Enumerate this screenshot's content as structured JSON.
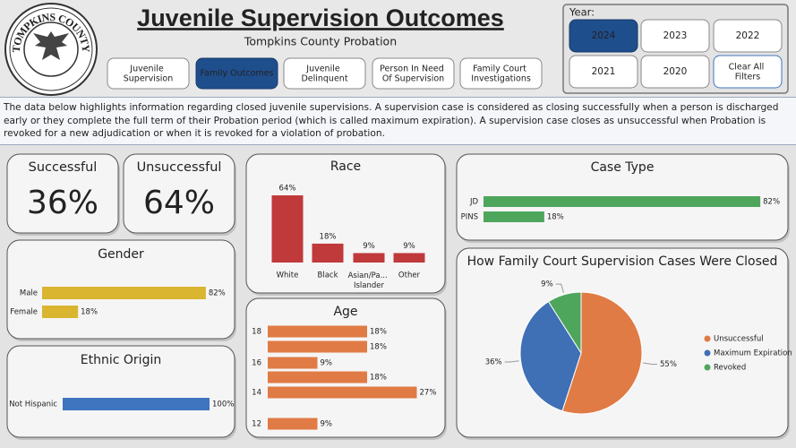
{
  "header": {
    "logo_text": "TOMPKINS COUNTY",
    "title": "Juvenile Supervision Outcomes",
    "subtitle": "Tompkins County Probation"
  },
  "nav": [
    "Juvenile Supervision",
    "Family Outcomes",
    "Juvenile Delinquent",
    "Person In Need Of Supervision",
    "Family Court Investigations"
  ],
  "nav_active": 1,
  "filters": {
    "label": "Year:",
    "options": [
      "2024",
      "2023",
      "2022",
      "2021",
      "2020"
    ],
    "active": 0,
    "clear": "Clear All Filters"
  },
  "description": "The data below highlights information regarding closed juvenile supervisions. A supervision case is considered as closing successfully when a person is discharged early or they complete the full term of their Probation period (which is called maximum expiration). A supervision case closes as unsuccessful when Probation is revoked for a new adjudication or when it is revoked for a violation of probation.",
  "kpis": [
    {
      "title": "Successful",
      "value": "36%"
    },
    {
      "title": "Unsuccessful",
      "value": "64%"
    }
  ],
  "chart_data": [
    {
      "type": "hbar",
      "title": "Gender",
      "categories": [
        "Male",
        "Female"
      ],
      "values": [
        82,
        18
      ],
      "value_labels": [
        "82%",
        "18%"
      ],
      "color": "#d9b530",
      "xlim": [
        0,
        100
      ]
    },
    {
      "type": "hbar",
      "title": "Ethnic Origin",
      "categories": [
        "Not Hispanic"
      ],
      "values": [
        100
      ],
      "value_labels": [
        "100%"
      ],
      "color": "#3f74bf",
      "xlim": [
        0,
        100
      ]
    },
    {
      "type": "bar",
      "title": "Race",
      "categories": [
        "White",
        "Black",
        "Asian/Pa... Islander",
        "Other"
      ],
      "values": [
        64,
        18,
        9,
        9
      ],
      "value_labels": [
        "64%",
        "18%",
        "9%",
        "9%"
      ],
      "color": "#c0393b",
      "ylim": [
        0,
        70
      ]
    },
    {
      "type": "hbar",
      "title": "Age",
      "categories": [
        "18",
        null,
        "16",
        null,
        "14",
        null,
        "12"
      ],
      "values": [
        18,
        18,
        9,
        18,
        27,
        null,
        9
      ],
      "value_labels": [
        "18%",
        "18%",
        "9%",
        "18%",
        "27%",
        null,
        "9%"
      ],
      "color": "#e07b45",
      "xlim": [
        0,
        30
      ]
    },
    {
      "type": "hbar",
      "title": "Case Type",
      "categories": [
        "JD",
        "PINS"
      ],
      "values": [
        82,
        18
      ],
      "value_labels": [
        "82%",
        "18%"
      ],
      "color": "#4ea65c",
      "xlim": [
        0,
        100
      ]
    },
    {
      "type": "pie",
      "title": "How Family Court Supervision Cases Were Closed",
      "categories": [
        "Unsuccessful",
        "Maximum Expiration",
        "Revoked"
      ],
      "values": [
        55,
        36,
        9
      ],
      "value_labels": [
        "55%",
        "36%",
        "9%"
      ],
      "colors": [
        "#e07b45",
        "#3f6fb5",
        "#4ea65c"
      ]
    }
  ]
}
